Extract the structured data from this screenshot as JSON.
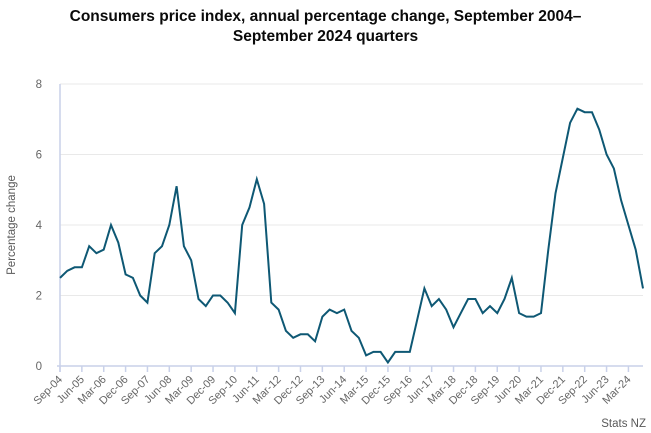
{
  "chart_data": {
    "type": "line",
    "title": "Consumers price index, annual percentage change, September 2004–September 2024 quarters",
    "xlabel": "",
    "ylabel": "Percentage change",
    "source": "Stats NZ",
    "series_name": "CPI annual percentage change (%)",
    "ylim": [
      0,
      8
    ],
    "yticks": [
      0,
      2,
      4,
      6,
      8
    ],
    "grid": "horizontal",
    "legend_position": "none",
    "x_tick_step": 3,
    "x_tick_labels": [
      "Sep-04",
      "Jun-05",
      "Mar-06",
      "Dec-06",
      "Sep-07",
      "Jun-08",
      "Mar-09",
      "Dec-09",
      "Sep-10",
      "Jun-11",
      "Mar-12",
      "Dec-12",
      "Sep-13",
      "Jun-14",
      "Mar-15",
      "Dec-15",
      "Sep-16",
      "Jun-17",
      "Mar-18",
      "Dec-18",
      "Sep-19",
      "Jun-20",
      "Mar-21",
      "Dec-21",
      "Sep-22",
      "Jun-23",
      "Mar-24"
    ],
    "x": [
      "Sep-04",
      "Dec-04",
      "Mar-05",
      "Jun-05",
      "Sep-05",
      "Dec-05",
      "Mar-06",
      "Jun-06",
      "Sep-06",
      "Dec-06",
      "Mar-07",
      "Jun-07",
      "Sep-07",
      "Dec-07",
      "Mar-08",
      "Jun-08",
      "Sep-08",
      "Dec-08",
      "Mar-09",
      "Jun-09",
      "Sep-09",
      "Dec-09",
      "Mar-10",
      "Jun-10",
      "Sep-10",
      "Dec-10",
      "Mar-11",
      "Jun-11",
      "Sep-11",
      "Dec-11",
      "Mar-12",
      "Jun-12",
      "Sep-12",
      "Dec-12",
      "Mar-13",
      "Jun-13",
      "Sep-13",
      "Dec-13",
      "Mar-14",
      "Jun-14",
      "Sep-14",
      "Dec-14",
      "Mar-15",
      "Jun-15",
      "Sep-15",
      "Dec-15",
      "Mar-16",
      "Jun-16",
      "Sep-16",
      "Dec-16",
      "Mar-17",
      "Jun-17",
      "Sep-17",
      "Dec-17",
      "Mar-18",
      "Jun-18",
      "Sep-18",
      "Dec-18",
      "Mar-19",
      "Jun-19",
      "Sep-19",
      "Dec-19",
      "Mar-20",
      "Jun-20",
      "Sep-20",
      "Dec-20",
      "Mar-21",
      "Jun-21",
      "Sep-21",
      "Dec-21",
      "Mar-22",
      "Jun-22",
      "Sep-22",
      "Dec-22",
      "Mar-23",
      "Jun-23",
      "Sep-23",
      "Dec-23",
      "Mar-24",
      "Jun-24",
      "Sep-24"
    ],
    "values": [
      2.5,
      2.7,
      2.8,
      2.8,
      3.4,
      3.2,
      3.3,
      4.0,
      3.5,
      2.6,
      2.5,
      2.0,
      1.8,
      3.2,
      3.4,
      4.0,
      5.1,
      3.4,
      3.0,
      1.9,
      1.7,
      2.0,
      2.0,
      1.8,
      1.5,
      4.0,
      4.5,
      5.3,
      4.6,
      1.8,
      1.6,
      1.0,
      0.8,
      0.9,
      0.9,
      0.7,
      1.4,
      1.6,
      1.5,
      1.6,
      1.0,
      0.8,
      0.3,
      0.4,
      0.4,
      0.1,
      0.4,
      0.4,
      0.4,
      1.3,
      2.2,
      1.7,
      1.9,
      1.6,
      1.1,
      1.5,
      1.9,
      1.9,
      1.5,
      1.7,
      1.5,
      1.9,
      2.5,
      1.5,
      1.4,
      1.4,
      1.5,
      3.3,
      4.9,
      5.9,
      6.9,
      7.3,
      7.2,
      7.2,
      6.7,
      6.0,
      5.6,
      4.7,
      4.0,
      3.3,
      2.2
    ],
    "colors": {
      "line": "#0e5874",
      "grid": "#e9e9e9",
      "axis": "#c9d1e9",
      "tick_text": "#666666",
      "label_text": "#595959",
      "title_text": "#0a0a0a"
    }
  }
}
